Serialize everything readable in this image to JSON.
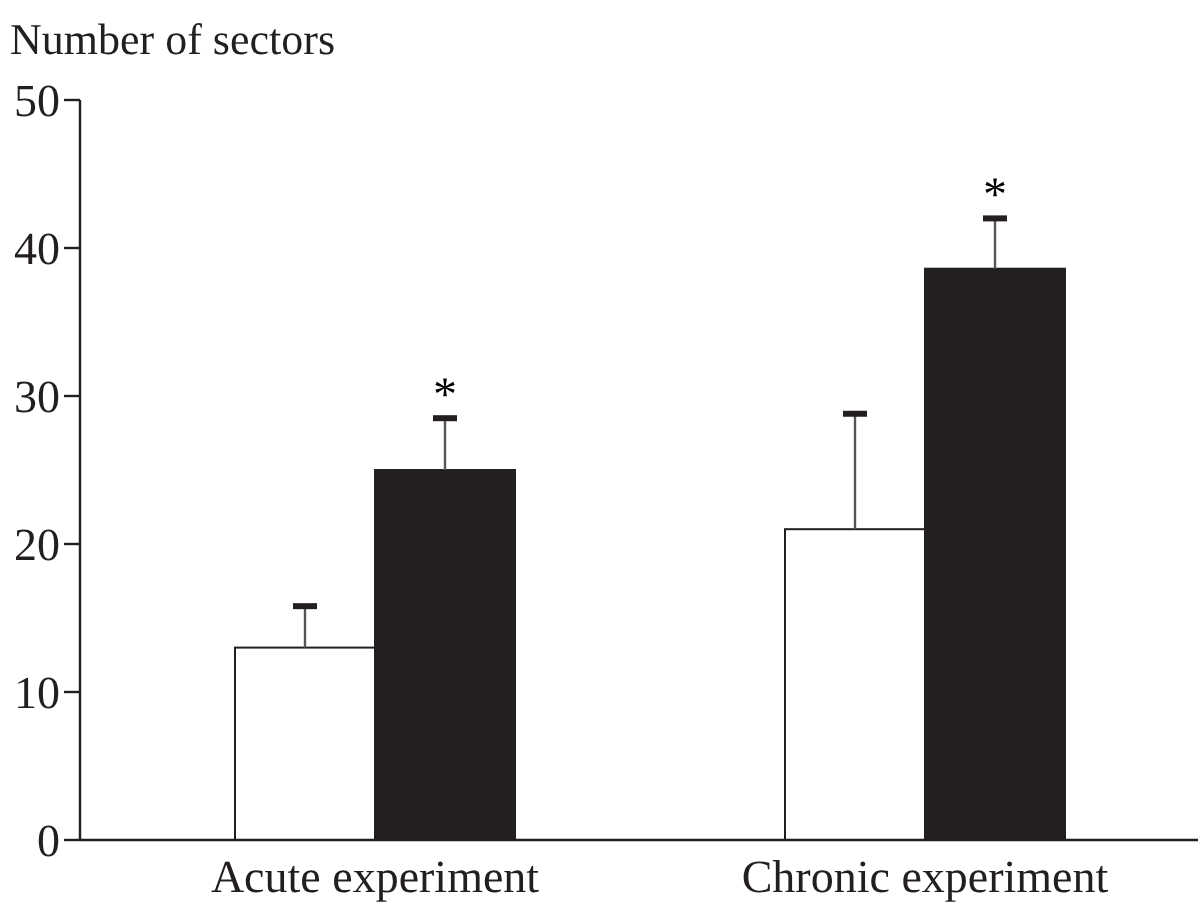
{
  "chart_data": {
    "type": "bar",
    "ylabel": "Number of sectors",
    "categories": [
      "Acute experiment",
      "Chronic experiment"
    ],
    "series": [
      {
        "color": "#ffffff",
        "values": [
          13,
          21
        ],
        "errors": [
          [
            13,
            15.8
          ],
          [
            21,
            28.8
          ]
        ]
      },
      {
        "color": "#231f20",
        "values": [
          25,
          38.6
        ],
        "errors": [
          [
            25,
            28.5
          ],
          [
            38.6,
            42
          ]
        ]
      }
    ],
    "ylim": [
      0,
      50
    ],
    "yticks": [
      0,
      10,
      20,
      30,
      40,
      50
    ],
    "annotations": [
      {
        "text": "*",
        "x": "Acute experiment",
        "y": 25
      },
      {
        "text": "*",
        "x": "Chronic experiment",
        "y": 38.6
      }
    ]
  }
}
